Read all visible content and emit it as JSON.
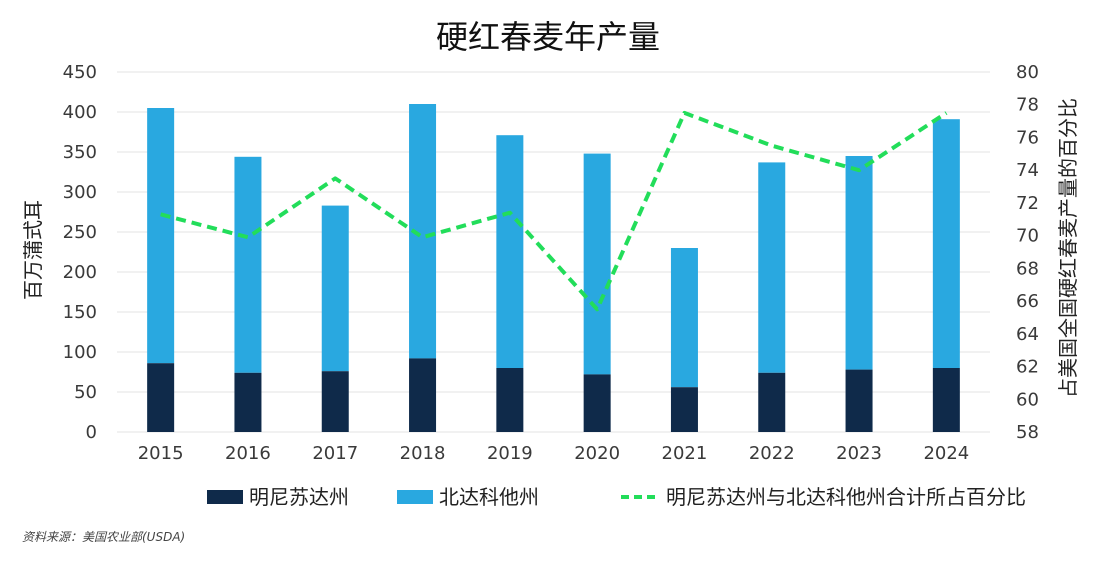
{
  "chart_data": {
    "type": "bar",
    "title": "硬红春麦年产量",
    "categories": [
      "2015",
      "2016",
      "2017",
      "2018",
      "2019",
      "2020",
      "2021",
      "2022",
      "2023",
      "2024"
    ],
    "series": [
      {
        "name": "明尼苏达州",
        "kind": "bar",
        "stack": "total",
        "color": "#0f2a4a",
        "values": [
          86,
          74,
          76,
          92,
          80,
          72,
          56,
          74,
          78,
          80
        ]
      },
      {
        "name": "北达科他州",
        "kind": "bar",
        "stack": "total",
        "color": "#29a8e0",
        "values": [
          319,
          270,
          207,
          318,
          291,
          276,
          174,
          263,
          267,
          311
        ]
      },
      {
        "name": "明尼苏达州与北达科他州合计所占百分比",
        "kind": "line",
        "axis": "right",
        "color": "#22dd5a",
        "style": "dashed",
        "values": [
          71.3,
          69.9,
          73.5,
          69.9,
          71.4,
          65.5,
          77.5,
          75.5,
          74.0,
          77.5
        ]
      }
    ],
    "ylabel": "百万蒲式耳",
    "y2label": "占美国全国硬红春麦产量的百分比",
    "ylim": [
      0,
      450
    ],
    "y2lim": [
      58,
      80
    ],
    "yticks": [
      "0",
      "50",
      "100",
      "150",
      "200",
      "250",
      "300",
      "350",
      "400",
      "450"
    ],
    "y2ticks": [
      "58",
      "60",
      "62",
      "64",
      "66",
      "68",
      "70",
      "72",
      "74",
      "76",
      "78",
      "80"
    ],
    "grid": true,
    "legend_position": "bottom"
  },
  "source": "资料来源：美国农业部(USDA)"
}
